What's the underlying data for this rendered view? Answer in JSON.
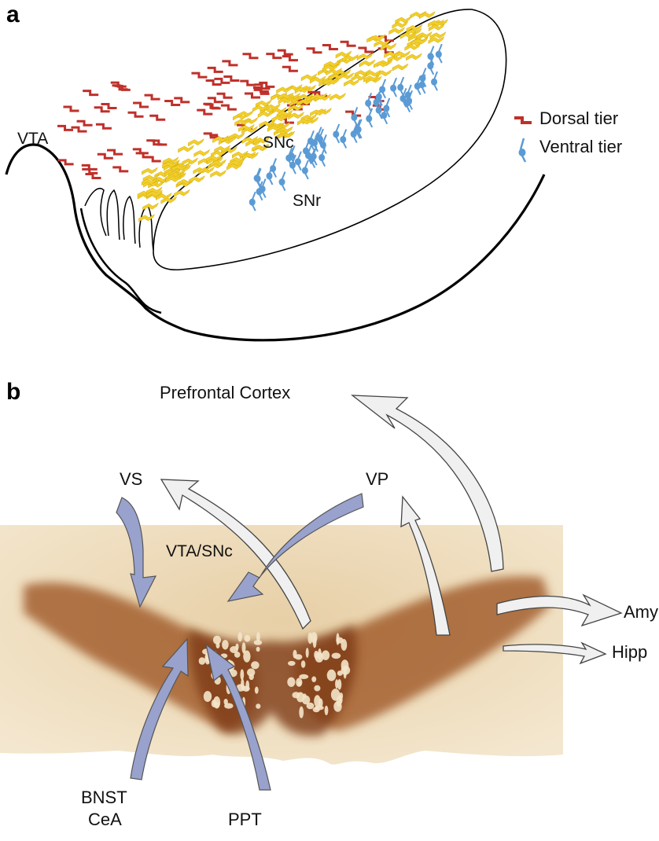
{
  "panel_a": {
    "letter": "a",
    "regions": {
      "vta": "VTA",
      "snc": "SNc",
      "snr": "SNr"
    },
    "legend": {
      "dorsal": "Dorsal tier",
      "ventral": "Ventral tier"
    },
    "colors": {
      "dorsal": "#c0302a",
      "ventral": "#5b9bd5",
      "snc_cells": "#f2cf2a"
    }
  },
  "panel_b": {
    "letter": "b",
    "slice_label": "VTA/SNc",
    "inputs": [
      {
        "id": "vs",
        "label": "VS"
      },
      {
        "id": "vp",
        "label": "VP"
      },
      {
        "id": "bnst",
        "label": "BNST",
        "label2": "CeA"
      },
      {
        "id": "ppt",
        "label": "PPT"
      }
    ],
    "outputs": [
      {
        "id": "pfc",
        "label": "Prefrontal Cortex"
      },
      {
        "id": "vs",
        "label": "VS"
      },
      {
        "id": "vp",
        "label": "VP"
      },
      {
        "id": "amy",
        "label": "Amy"
      },
      {
        "id": "hipp",
        "label": "Hipp"
      }
    ],
    "colors": {
      "input_arrow": "#98a2cc",
      "output_arrow": "#f0f0f0",
      "stain": "#a0581e"
    }
  }
}
